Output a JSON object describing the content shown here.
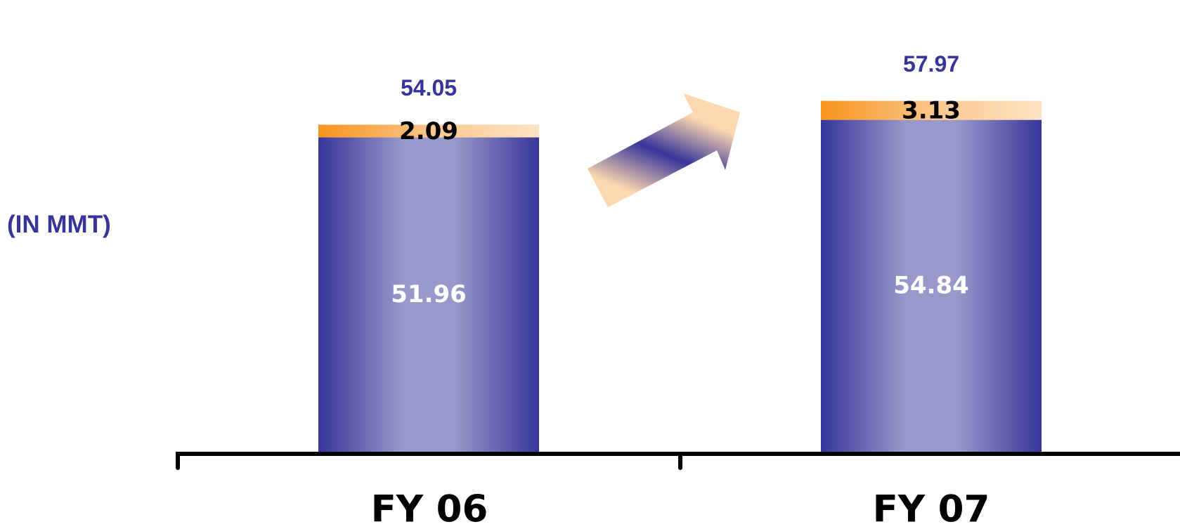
{
  "chart_data": {
    "type": "bar",
    "stacked": true,
    "unit_label": "(IN MMT)",
    "categories": [
      "FY 06",
      "FY 07"
    ],
    "series": [
      {
        "values": [
          51.96,
          54.84
        ],
        "color": "#37359a"
      },
      {
        "values": [
          2.09,
          3.13
        ],
        "color": "#f7941d"
      }
    ],
    "totals": [
      "54.05",
      "57.97"
    ],
    "segment_labels": [
      [
        "51.96",
        "2.09"
      ],
      [
        "54.84",
        "3.13"
      ]
    ],
    "colors": {
      "total_text": "#37359a",
      "base_text": "#ffffff",
      "top_text": "#000000",
      "axis": "#000000"
    },
    "trend_arrow": "up-right-arrow",
    "grid": false,
    "legend": "none"
  }
}
